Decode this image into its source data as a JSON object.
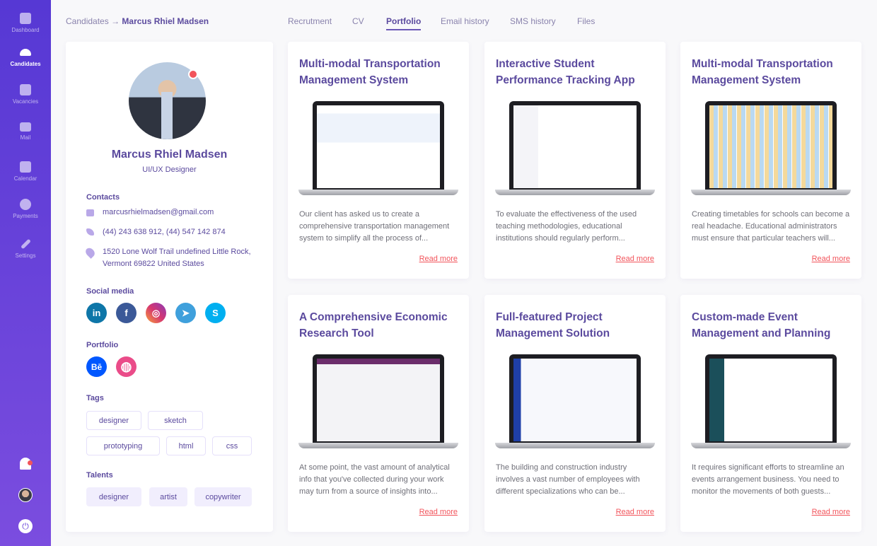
{
  "sidebar": {
    "items": [
      {
        "label": "Dashboard",
        "icon": "dashboard-icon"
      },
      {
        "label": "Candidates",
        "icon": "people-icon",
        "active": true
      },
      {
        "label": "Vacancies",
        "icon": "clipboard-icon"
      },
      {
        "label": "Mail",
        "icon": "mail-icon"
      },
      {
        "label": "Calendar",
        "icon": "calendar-icon"
      },
      {
        "label": "Payments",
        "icon": "dollar-icon"
      },
      {
        "label": "Settings",
        "icon": "wrench-icon"
      }
    ]
  },
  "breadcrumb": {
    "parent": "Candidates",
    "arrow": "→",
    "current": "Marcus Rhiel Madsen"
  },
  "tabs": [
    "Recrutment",
    "CV",
    "Portfolio",
    "Email history",
    "SMS history",
    "Files"
  ],
  "active_tab": "Portfolio",
  "profile": {
    "name": "Marcus Rhiel Madsen",
    "role": "UI/UX Designer",
    "contacts_label": "Contacts",
    "email": "marcusrhielmadsen@gmail.com",
    "phone": "(44) 243 638 912, (44) 547 142 874",
    "address_line1": "1520 Lone Wolf Trail undefined Little Rock,",
    "address_line2": "Vermont 69822 United States",
    "social_label": "Social media",
    "social": [
      {
        "name": "linkedin",
        "glyph": "in",
        "color": "#0e76a8"
      },
      {
        "name": "facebook",
        "glyph": "f",
        "color": "#3b5998"
      },
      {
        "name": "instagram",
        "glyph": "◎",
        "color": "#d6366f"
      },
      {
        "name": "telegram",
        "glyph": "➤",
        "color": "#3fa0dc"
      },
      {
        "name": "skype",
        "glyph": "S",
        "color": "#00aff0"
      }
    ],
    "portfolio_label": "Portfolio",
    "portfolio": [
      {
        "name": "behance",
        "glyph": "Bē",
        "color": "#0057ff"
      },
      {
        "name": "dribbble",
        "glyph": "◍",
        "color": "#ea4c89"
      }
    ],
    "tags_label": "Tags",
    "tags": [
      "designer",
      "sketch",
      "prototyping",
      "html",
      "css"
    ],
    "talents_label": "Talents",
    "talents": [
      "designer",
      "artist",
      "copywriter"
    ]
  },
  "colors": {
    "accent": "#5b4a9e",
    "link": "#f2545b",
    "status_dot": "#f2545b"
  },
  "projects": [
    {
      "title": "Multi-modal Transportation Management System",
      "desc": "Our client has asked us to create a comprehensive transportation management system to simplify all the process of...",
      "link": "Read more"
    },
    {
      "title": "Interactive Student Performance Tracking App",
      "desc": "To evaluate the effectiveness of the used teaching methodologies, educational institutions should regularly perform...",
      "link": "Read more"
    },
    {
      "title": "Multi-modal Transportation Management System",
      "desc": "Creating timetables for schools can become a real headache. Educational administrators must ensure that particular teachers will...",
      "link": "Read more"
    },
    {
      "title": "A Comprehensive Economic Research Tool",
      "desc": "At some point, the vast amount of analytical info that you've collected during your work may turn from a source of insights into...",
      "link": "Read more"
    },
    {
      "title": "Full-featured Project Management Solution",
      "desc": "The building and construction industry involves a vast number of employees with different specializations who can be...",
      "link": "Read more"
    },
    {
      "title": "Custom-made Event Management and Planning",
      "desc": "It requires significant efforts to streamline an events arrangement business. You need to monitor the movements of both guests...",
      "link": "Read more"
    }
  ]
}
